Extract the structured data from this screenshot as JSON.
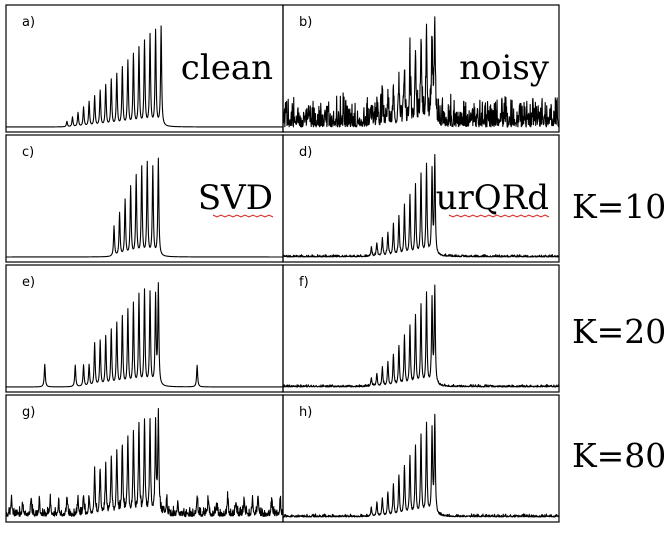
{
  "k_labels": [
    "K=10",
    "K=20",
    "K=80"
  ],
  "chart_data": {
    "type": "line",
    "x_range": [
      0,
      1
    ],
    "y_range": [
      0,
      1
    ],
    "grid": false,
    "panels": [
      {
        "letter": "a)",
        "word": "clean",
        "spellcheck_underline": false,
        "noise": 0.0,
        "base": "clean",
        "spurious": []
      },
      {
        "letter": "b)",
        "word": "noisy",
        "spellcheck_underline": false,
        "noise": 0.16,
        "base": "noisy",
        "spurious": []
      },
      {
        "letter": "c)",
        "word": "SVD",
        "spellcheck_underline": true,
        "noise": 0.0,
        "base": "svd10",
        "spurious": []
      },
      {
        "letter": "d)",
        "word": "urQRd",
        "spellcheck_underline": true,
        "noise": 0.012,
        "base": "noisy",
        "spurious": []
      },
      {
        "letter": "e)",
        "word": "",
        "spellcheck_underline": false,
        "noise": 0.0,
        "base": "svd20",
        "spurious": [
          [
            0.14,
            0.21
          ],
          [
            0.25,
            0.2
          ],
          [
            0.28,
            0.2
          ],
          [
            0.3,
            0.2
          ],
          [
            0.69,
            0.2
          ]
        ]
      },
      {
        "letter": "f)",
        "word": "",
        "spellcheck_underline": false,
        "noise": 0.012,
        "base": "noisy",
        "spurious": []
      },
      {
        "letter": "g)",
        "word": "",
        "spellcheck_underline": false,
        "noise": 0.05,
        "base": "svd20",
        "spurious": [
          [
            0.02,
            0.16
          ],
          [
            0.06,
            0.11
          ],
          [
            0.09,
            0.15
          ],
          [
            0.12,
            0.12
          ],
          [
            0.16,
            0.14
          ],
          [
            0.19,
            0.13
          ],
          [
            0.22,
            0.16
          ],
          [
            0.26,
            0.14
          ],
          [
            0.28,
            0.18
          ],
          [
            0.3,
            0.17
          ],
          [
            0.58,
            0.14
          ],
          [
            0.62,
            0.12
          ],
          [
            0.69,
            0.16
          ],
          [
            0.73,
            0.14
          ],
          [
            0.76,
            0.12
          ],
          [
            0.8,
            0.16
          ],
          [
            0.83,
            0.13
          ],
          [
            0.86,
            0.16
          ],
          [
            0.89,
            0.15
          ],
          [
            0.91,
            0.17
          ],
          [
            0.96,
            0.16
          ],
          [
            0.99,
            0.14
          ]
        ]
      },
      {
        "letter": "h)",
        "word": "",
        "spellcheck_underline": false,
        "noise": 0.015,
        "base": "noisy",
        "spurious": []
      }
    ],
    "peak_sets": {
      "clean": [
        {
          "x": 0.22,
          "h": 0.05
        },
        {
          "x": 0.24,
          "h": 0.09
        },
        {
          "x": 0.26,
          "h": 0.13
        },
        {
          "x": 0.28,
          "h": 0.18
        },
        {
          "x": 0.3,
          "h": 0.23
        },
        {
          "x": 0.32,
          "h": 0.28
        },
        {
          "x": 0.34,
          "h": 0.33
        },
        {
          "x": 0.36,
          "h": 0.38
        },
        {
          "x": 0.38,
          "h": 0.43
        },
        {
          "x": 0.4,
          "h": 0.48
        },
        {
          "x": 0.42,
          "h": 0.54
        },
        {
          "x": 0.44,
          "h": 0.6
        },
        {
          "x": 0.46,
          "h": 0.66
        },
        {
          "x": 0.48,
          "h": 0.72
        },
        {
          "x": 0.5,
          "h": 0.78
        },
        {
          "x": 0.52,
          "h": 0.84
        },
        {
          "x": 0.54,
          "h": 0.88
        },
        {
          "x": 0.56,
          "h": 0.92
        }
      ],
      "noisy": [
        {
          "x": 0.32,
          "h": 0.08
        },
        {
          "x": 0.34,
          "h": 0.12
        },
        {
          "x": 0.36,
          "h": 0.17
        },
        {
          "x": 0.38,
          "h": 0.22
        },
        {
          "x": 0.4,
          "h": 0.29
        },
        {
          "x": 0.42,
          "h": 0.37
        },
        {
          "x": 0.44,
          "h": 0.46
        },
        {
          "x": 0.46,
          "h": 0.55
        },
        {
          "x": 0.48,
          "h": 0.64
        },
        {
          "x": 0.5,
          "h": 0.74
        },
        {
          "x": 0.52,
          "h": 0.84
        },
        {
          "x": 0.54,
          "h": 0.78
        },
        {
          "x": 0.55,
          "h": 0.9
        }
      ],
      "svd10": [
        {
          "x": 0.39,
          "h": 0.28
        },
        {
          "x": 0.41,
          "h": 0.4
        },
        {
          "x": 0.43,
          "h": 0.52
        },
        {
          "x": 0.45,
          "h": 0.64
        },
        {
          "x": 0.47,
          "h": 0.74
        },
        {
          "x": 0.49,
          "h": 0.82
        },
        {
          "x": 0.51,
          "h": 0.86
        },
        {
          "x": 0.53,
          "h": 0.82
        },
        {
          "x": 0.55,
          "h": 0.9
        }
      ],
      "svd20": [
        {
          "x": 0.32,
          "h": 0.4
        },
        {
          "x": 0.34,
          "h": 0.42
        },
        {
          "x": 0.36,
          "h": 0.46
        },
        {
          "x": 0.38,
          "h": 0.52
        },
        {
          "x": 0.4,
          "h": 0.58
        },
        {
          "x": 0.42,
          "h": 0.64
        },
        {
          "x": 0.44,
          "h": 0.7
        },
        {
          "x": 0.46,
          "h": 0.76
        },
        {
          "x": 0.48,
          "h": 0.84
        },
        {
          "x": 0.5,
          "h": 0.88
        },
        {
          "x": 0.52,
          "h": 0.86
        },
        {
          "x": 0.54,
          "h": 0.82
        },
        {
          "x": 0.55,
          "h": 0.92
        }
      ]
    }
  }
}
